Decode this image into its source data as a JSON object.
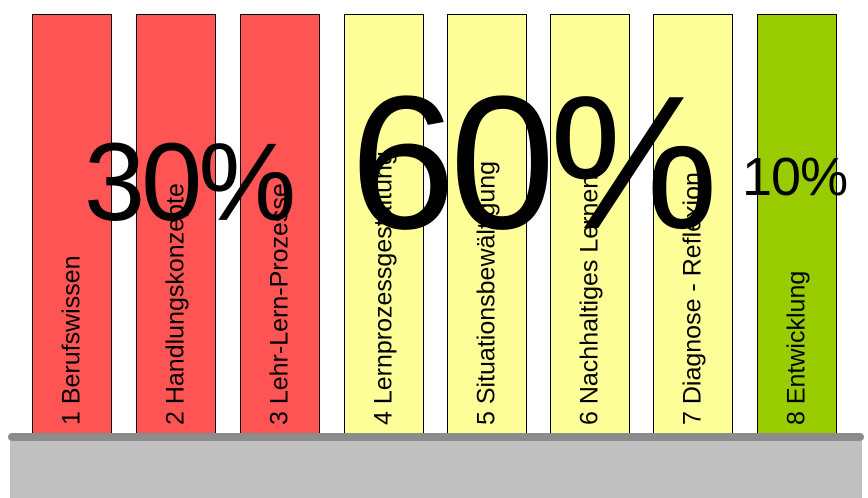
{
  "books": [
    {
      "label": "1  Berufswissen",
      "color": "#ff5454"
    },
    {
      "label": "2  Handlungskonzepte",
      "color": "#ff5454"
    },
    {
      "label": "3  Lehr-Lern-Prozesse",
      "color": "#ff5454"
    },
    {
      "label": "4  Lernprozessgestaltung",
      "color": "#ffff99"
    },
    {
      "label": "5  Situationsbewältigung",
      "color": "#ffff99"
    },
    {
      "label": "6  Nachhaltiges Lernen",
      "color": "#ffff99"
    },
    {
      "label": "7  Diagnose - Reflexion",
      "color": "#ffff99"
    },
    {
      "label": "8  Entwicklung",
      "color": "#99cc00"
    }
  ],
  "percentages": {
    "red": "30%",
    "yellow": "60%",
    "green": "10%"
  }
}
